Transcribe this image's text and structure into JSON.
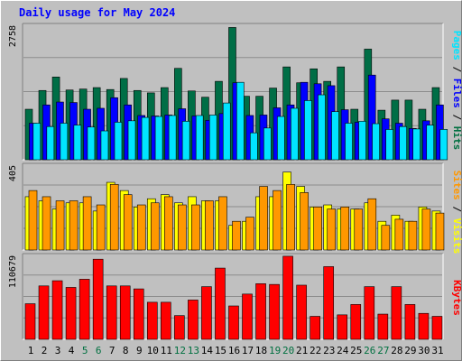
{
  "chart_data": {
    "type": "bar",
    "title": "Daily usage for May 2024",
    "categories": [
      "1",
      "2",
      "3",
      "4",
      "5",
      "6",
      "7",
      "8",
      "9",
      "10",
      "11",
      "12",
      "13",
      "14",
      "15",
      "16",
      "17",
      "18",
      "19",
      "20",
      "21",
      "22",
      "23",
      "24",
      "25",
      "26",
      "27",
      "28",
      "29",
      "30",
      "31"
    ],
    "weekend_days": [
      4,
      5,
      11,
      12,
      18,
      19,
      25,
      26
    ],
    "panels": [
      {
        "name": "top",
        "ymax_label": "2758",
        "ymax": 2758,
        "series": [
          {
            "name": "Hits",
            "color": "#006e46",
            "values": [
              1050,
              1440,
              1720,
              1450,
              1470,
              1500,
              1460,
              1690,
              1440,
              1390,
              1500,
              1900,
              1430,
              1300,
              1630,
              2750,
              1320,
              1320,
              1490,
              1930,
              1600,
              1890,
              1630,
              1930,
              1050,
              2300,
              1030,
              1240,
              1240,
              1050,
              1500
            ]
          },
          {
            "name": "Files",
            "color": "#0000ff",
            "values": [
              760,
              1140,
              1200,
              1190,
              1050,
              1070,
              1290,
              1140,
              920,
              910,
              930,
              1060,
              910,
              820,
              960,
              1600,
              920,
              930,
              1080,
              1140,
              1610,
              1580,
              1540,
              1040,
              780,
              1760,
              850,
              760,
              650,
              810,
              1140
            ]
          },
          {
            "name": "Pages",
            "color": "#00e4ff",
            "values": [
              760,
              690,
              760,
              720,
              680,
              600,
              780,
              810,
              880,
              900,
              920,
              800,
              920,
              930,
              1180,
              1610,
              560,
              660,
              900,
              1070,
              1230,
              1350,
              1000,
              760,
              800,
              750,
              630,
              690,
              640,
              720,
              630
            ]
          }
        ]
      },
      {
        "name": "middle",
        "ymax_label": "405",
        "ymax": 405,
        "series": [
          {
            "name": "Visits",
            "color": "#ffff00",
            "values": [
              260,
              240,
              200,
              230,
              230,
              190,
              330,
              290,
              210,
              250,
              270,
              230,
              260,
              240,
              240,
              120,
              140,
              260,
              260,
              380,
              310,
              210,
              220,
              200,
              200,
              230,
              140,
              170,
              140,
              210,
              190
            ]
          },
          {
            "name": "Sites",
            "color": "#ff9800",
            "values": [
              290,
              260,
              240,
              240,
              260,
              220,
              320,
              270,
              220,
              230,
              260,
              220,
              220,
              240,
              260,
              140,
              160,
              310,
              290,
              320,
              280,
              210,
              200,
              210,
              200,
              250,
              120,
              150,
              140,
              200,
              180
            ]
          }
        ]
      },
      {
        "name": "bottom",
        "ymax_label": "110679",
        "ymax": 110679,
        "series": [
          {
            "name": "KBytes",
            "color": "#ff0000",
            "values": [
              48000,
              72000,
              79000,
              70000,
              81000,
              108000,
              72000,
              72000,
              68000,
              50000,
              50000,
              32000,
              53000,
              71000,
              96000,
              45000,
              61000,
              75000,
              74000,
              112000,
              73000,
              31000,
              98000,
              33000,
              47000,
              71000,
              34000,
              71000,
              47000,
              35000,
              31000
            ]
          }
        ]
      }
    ],
    "legends": {
      "top": [
        "Pages",
        " / ",
        "Files",
        " / ",
        "Hits"
      ],
      "middle": [
        "Sites",
        " / ",
        "Visits"
      ],
      "bottom": [
        "KBytes"
      ]
    }
  }
}
